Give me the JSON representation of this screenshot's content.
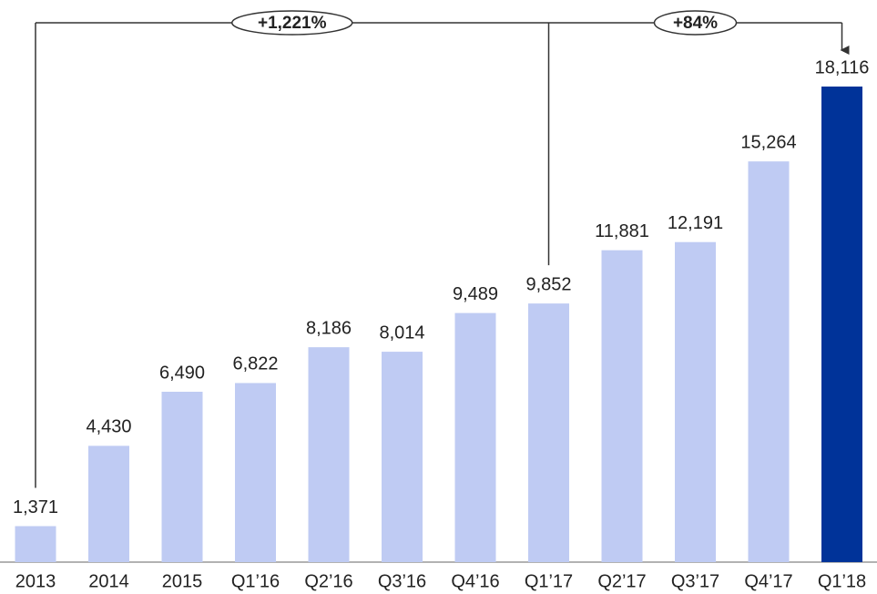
{
  "chart_data": {
    "type": "bar",
    "categories": [
      "2013",
      "2014",
      "2015",
      "Q1’16",
      "Q2’16",
      "Q3’16",
      "Q4’16",
      "Q1’17",
      "Q2’17",
      "Q3’17",
      "Q4’17",
      "Q1’18"
    ],
    "values": [
      1371,
      4430,
      6490,
      6822,
      8186,
      8014,
      9489,
      9852,
      11881,
      12191,
      15264,
      18116
    ],
    "value_labels": [
      "1,371",
      "4,430",
      "6,490",
      "6,822",
      "8,186",
      "8,014",
      "9,489",
      "9,852",
      "11,881",
      "12,191",
      "15,264",
      "18,116"
    ],
    "colors": [
      "#bfcbf3",
      "#bfcbf3",
      "#bfcbf3",
      "#bfcbf3",
      "#bfcbf3",
      "#bfcbf3",
      "#bfcbf3",
      "#bfcbf3",
      "#bfcbf3",
      "#bfcbf3",
      "#bfcbf3",
      "#003399"
    ],
    "annotations": [
      {
        "text": "+1,221%"
      },
      {
        "text": "+84%"
      }
    ]
  }
}
